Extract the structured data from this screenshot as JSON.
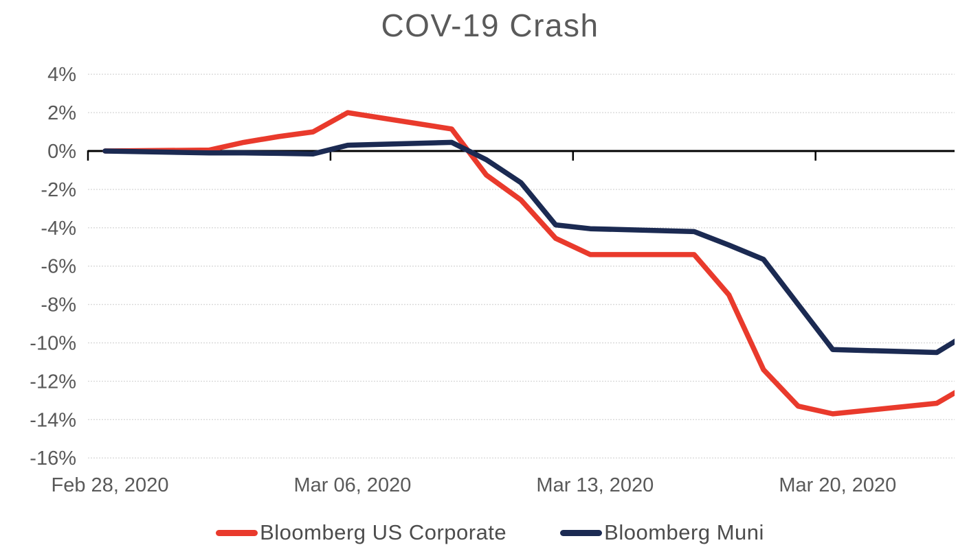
{
  "chart_data": {
    "type": "line",
    "title": "COV-19 Crash",
    "x_axis": {
      "tick_labels": [
        "Feb 28, 2020",
        "Mar 06, 2020",
        "Mar 13, 2020",
        "Mar 20, 2020"
      ],
      "tick_label_day_offsets": [
        0,
        7,
        14,
        21
      ]
    },
    "y_axis": {
      "tick_values": [
        4,
        2,
        0,
        -2,
        -4,
        -6,
        -8,
        -10,
        -12,
        -14,
        -16
      ],
      "tick_suffix": "%",
      "ylim": [
        -16,
        4
      ]
    },
    "dates": [
      "Feb 28",
      "Mar 02",
      "Mar 03",
      "Mar 04",
      "Mar 05",
      "Mar 06",
      "Mar 09",
      "Mar 10",
      "Mar 11",
      "Mar 12",
      "Mar 13",
      "Mar 16",
      "Mar 17",
      "Mar 18",
      "Mar 19",
      "Mar 20",
      "Mar 23",
      "Mar 24"
    ],
    "day_offsets": [
      0,
      3,
      4,
      5,
      6,
      7,
      10,
      11,
      12,
      13,
      14,
      17,
      18,
      19,
      20,
      21,
      24,
      25
    ],
    "series": [
      {
        "name": "Bloomberg US Corporate",
        "color": "#E93A2C",
        "values": [
          0.0,
          0.05,
          0.45,
          0.75,
          1.0,
          2.0,
          1.15,
          -1.25,
          -2.55,
          -4.55,
          -5.4,
          -5.4,
          -7.5,
          -11.4,
          -13.3,
          -13.7,
          -13.15,
          -12.1
        ]
      },
      {
        "name": "Bloomberg Muni",
        "color": "#1B2A52",
        "values": [
          0.0,
          -0.1,
          -0.1,
          -0.12,
          -0.15,
          0.3,
          0.45,
          -0.45,
          -1.65,
          -3.85,
          -4.05,
          -4.2,
          -4.9,
          -5.65,
          -8.0,
          -10.35,
          -10.5,
          -9.4
        ]
      }
    ],
    "grid": "horizontal-dotted",
    "legend_position": "bottom",
    "colors": {
      "grid": "#D9D9D9",
      "axis": "#000000",
      "tick_text": "#595959",
      "legend_text": "#4C4C4C",
      "title_text": "#5A5A5A"
    }
  }
}
